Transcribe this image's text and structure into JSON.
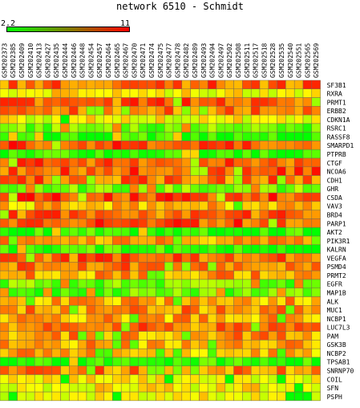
{
  "title": "network 6510 - Schmidt",
  "legend": {
    "min_label": "2.2",
    "max_label": "11",
    "min": 2.2,
    "max": 11,
    "low_color": "#00ff00",
    "high_color": "#ff0000"
  },
  "chart_data": {
    "type": "heatmap",
    "title": "network 6510 - Schmidt",
    "columns": [
      "GSM202373",
      "GSM202385",
      "GSM202409",
      "GSM202410",
      "GSM202413",
      "GSM202427",
      "GSM202435",
      "GSM202444",
      "GSM202446",
      "GSM202448",
      "GSM202454",
      "GSM202457",
      "GSM202464",
      "GSM202465",
      "GSM202467",
      "GSM202470",
      "GSM202471",
      "GSM202474",
      "GSM202475",
      "GSM202477",
      "GSM202478",
      "GSM202482",
      "GSM202489",
      "GSM202493",
      "GSM202494",
      "GSM202497",
      "GSM202502",
      "GSM202508",
      "GSM202511",
      "GSM202517",
      "GSM202518",
      "GSM202528",
      "GSM202535",
      "GSM202540",
      "GSM202551",
      "GSM202565",
      "GSM202569"
    ],
    "rows": [
      "SF3B1",
      "RXRA",
      "PRMT1",
      "ERBB2",
      "CDKN1A",
      "RSRC1",
      "RASSF8",
      "SMARPD1",
      "PTPRB",
      "CTGF",
      "NCOA6",
      "CDH1",
      "GHR",
      "CSDA",
      "VAV3",
      "BRD4",
      "PARP1",
      "AKT2",
      "PIK3R1",
      "KALRN",
      "VEGFA",
      "PSMD4",
      "PRMT2",
      "EGFR",
      "MAP1B",
      "ALK",
      "MUC1",
      "NCBP1",
      "LUC7L3",
      "PAM",
      "GSK3B",
      "NCBP2",
      "TPSAB1",
      "SNRNP70",
      "COIL",
      "SFN",
      "PSPH"
    ],
    "row_base": [
      9.2,
      7.0,
      9.4,
      9.0,
      6.5,
      4.2,
      3.0,
      9.8,
      2.8,
      9.6,
      9.6,
      9.2,
      4.3,
      10.0,
      7.8,
      9.4,
      9.6,
      3.0,
      8.6,
      3.3,
      9.3,
      9.1,
      8.4,
      4.3,
      3.9,
      8.2,
      8.6,
      8.2,
      9.0,
      8.5,
      8.3,
      8.0,
      3.0,
      8.8,
      6.8,
      6.8,
      6.8
    ],
    "value_range": [
      2.2,
      11
    ]
  }
}
